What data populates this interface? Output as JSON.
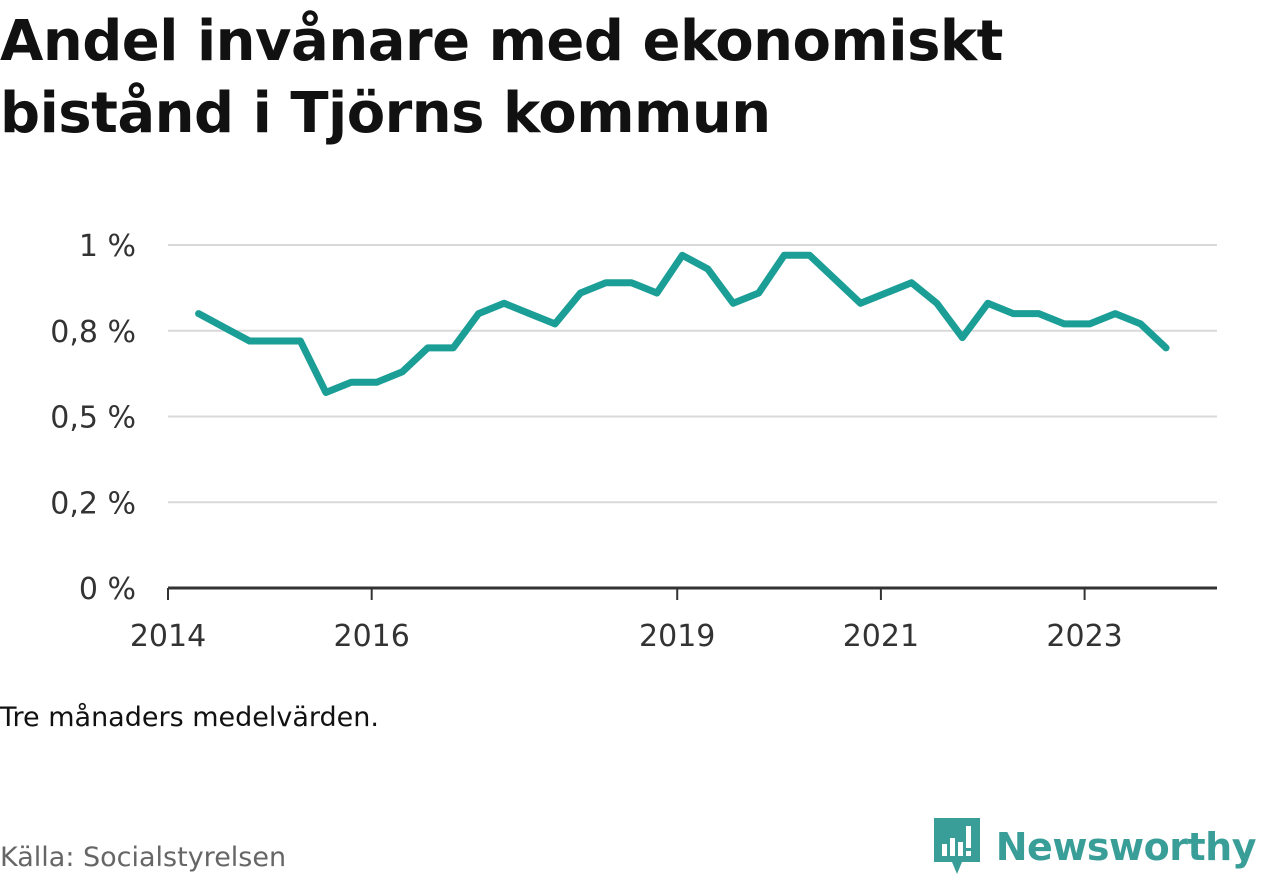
{
  "title": "Andel invånare med ekonomiskt bistånd i Tjörns kommun",
  "note": "Tre månaders medelvärden.",
  "source": "Källa: Socialstyrelsen",
  "brand": "Newsworthy",
  "colors": {
    "line": "#1a9e96",
    "grid": "#d9d9d9",
    "axis": "#333333",
    "brand": "#3a9e98"
  },
  "chart_data": {
    "type": "line",
    "title": "Andel invånare med ekonomiskt bistånd i Tjörns kommun",
    "xlabel": "",
    "ylabel": "",
    "ylim": [
      0,
      1.0
    ],
    "xlim": [
      2014,
      2024.3
    ],
    "y_ticks": [
      {
        "value": 0,
        "label": "0 %"
      },
      {
        "value": 0.25,
        "label": "0,2 %"
      },
      {
        "value": 0.5,
        "label": "0,5 %"
      },
      {
        "value": 0.75,
        "label": "0,8 %"
      },
      {
        "value": 1.0,
        "label": "1 %"
      }
    ],
    "x_ticks": [
      {
        "value": 2014,
        "label": "2014"
      },
      {
        "value": 2016,
        "label": "2016"
      },
      {
        "value": 2019,
        "label": "2019"
      },
      {
        "value": 2021,
        "label": "2021"
      },
      {
        "value": 2023,
        "label": "2023"
      }
    ],
    "grid": true,
    "series": [
      {
        "x": [
          2014.3,
          2014.55,
          2014.8,
          2015.05,
          2015.3,
          2015.55,
          2015.8,
          2016.05,
          2016.3,
          2016.55,
          2016.8,
          2017.05,
          2017.3,
          2017.55,
          2017.8,
          2018.05,
          2018.3,
          2018.55,
          2018.8,
          2019.05,
          2019.3,
          2019.55,
          2019.8,
          2020.05,
          2020.3,
          2020.55,
          2020.8,
          2021.05,
          2021.3,
          2021.55,
          2021.8,
          2022.05,
          2022.3,
          2022.55,
          2022.8,
          2023.05,
          2023.3,
          2023.55,
          2023.8
        ],
        "values": [
          0.8,
          0.76,
          0.72,
          0.72,
          0.72,
          0.57,
          0.6,
          0.6,
          0.63,
          0.7,
          0.7,
          0.8,
          0.83,
          0.8,
          0.77,
          0.86,
          0.89,
          0.89,
          0.86,
          0.97,
          0.93,
          0.83,
          0.86,
          0.97,
          0.97,
          0.9,
          0.83,
          0.86,
          0.89,
          0.83,
          0.73,
          0.83,
          0.8,
          0.8,
          0.77,
          0.77,
          0.8,
          0.77,
          0.7
        ]
      }
    ]
  }
}
